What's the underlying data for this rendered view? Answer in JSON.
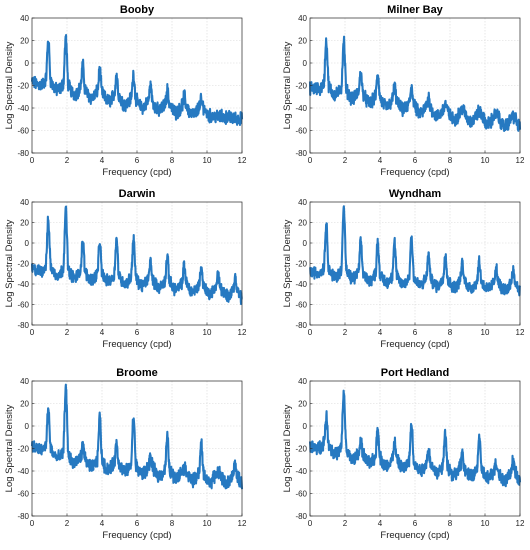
{
  "chart_data": [
    {
      "type": "line",
      "title": "Booby",
      "xlabel": "Frequency (cpd)",
      "ylabel": "Log Spectral Density",
      "xlim": [
        0,
        12
      ],
      "ylim": [
        -80,
        40
      ],
      "xticks": [
        0,
        2,
        4,
        6,
        8,
        10,
        12
      ],
      "yticks": [
        -80,
        -60,
        -40,
        -20,
        0,
        20,
        40
      ],
      "grid": true,
      "color": "#1a72be",
      "background": [
        [
          0,
          -17
        ],
        [
          0.5,
          -20
        ],
        [
          1,
          -23
        ],
        [
          2,
          -26
        ],
        [
          3,
          -30
        ],
        [
          4,
          -33
        ],
        [
          5,
          -36
        ],
        [
          6,
          -39
        ],
        [
          7,
          -42
        ],
        [
          8,
          -44
        ],
        [
          9,
          -46
        ],
        [
          10,
          -47
        ],
        [
          11,
          -48
        ],
        [
          12,
          -50
        ]
      ],
      "peaks": [
        [
          0.93,
          20
        ],
        [
          1.93,
          22
        ],
        [
          2.9,
          -2
        ],
        [
          3.87,
          -6
        ],
        [
          4.83,
          -10
        ],
        [
          5.8,
          -10
        ],
        [
          6.77,
          -20
        ],
        [
          7.73,
          -24
        ],
        [
          8.7,
          -29
        ],
        [
          9.67,
          -33
        ]
      ]
    },
    {
      "type": "line",
      "title": "Milner Bay",
      "xlabel": "Frequency (cpd)",
      "ylabel": "Log Spectral Density",
      "xlim": [
        0,
        12
      ],
      "ylim": [
        -80,
        40
      ],
      "xticks": [
        0,
        2,
        4,
        6,
        8,
        10,
        12
      ],
      "yticks": [
        -80,
        -60,
        -40,
        -20,
        0,
        20,
        40
      ],
      "grid": true,
      "color": "#1a72be",
      "background": [
        [
          0,
          -22
        ],
        [
          0.5,
          -24
        ],
        [
          1,
          -27
        ],
        [
          2,
          -30
        ],
        [
          3,
          -34
        ],
        [
          4,
          -38
        ],
        [
          5,
          -41
        ],
        [
          6,
          -44
        ],
        [
          7,
          -47
        ],
        [
          8,
          -50
        ],
        [
          9,
          -52
        ],
        [
          10,
          -54
        ],
        [
          11,
          -56
        ],
        [
          12,
          -58
        ]
      ],
      "peaks": [
        [
          0.93,
          20
        ],
        [
          1.93,
          20
        ],
        [
          2.9,
          -8
        ],
        [
          3.87,
          -10
        ],
        [
          4.83,
          -20
        ],
        [
          5.8,
          -20
        ],
        [
          6.77,
          -30
        ],
        [
          7.73,
          -36
        ],
        [
          8.7,
          -40
        ],
        [
          9.67,
          -44
        ],
        [
          10.63,
          -47
        ],
        [
          11.6,
          -51
        ]
      ]
    },
    {
      "type": "line",
      "title": "Darwin",
      "xlabel": "Frequency (cpd)",
      "ylabel": "Log Spectral Density",
      "xlim": [
        0,
        12
      ],
      "ylim": [
        -80,
        40
      ],
      "xticks": [
        0,
        2,
        4,
        6,
        8,
        10,
        12
      ],
      "yticks": [
        -80,
        -60,
        -40,
        -20,
        0,
        20,
        40
      ],
      "grid": true,
      "color": "#1a72be",
      "background": [
        [
          0,
          -25
        ],
        [
          0.5,
          -28
        ],
        [
          1,
          -30
        ],
        [
          2,
          -33
        ],
        [
          3,
          -35
        ],
        [
          4,
          -37
        ],
        [
          5,
          -39
        ],
        [
          6,
          -41
        ],
        [
          7,
          -43
        ],
        [
          8,
          -45
        ],
        [
          9,
          -47
        ],
        [
          10,
          -49
        ],
        [
          11,
          -51
        ],
        [
          12,
          -55
        ]
      ],
      "peaks": [
        [
          0.93,
          22
        ],
        [
          1.93,
          32
        ],
        [
          2.9,
          2
        ],
        [
          3.87,
          0
        ],
        [
          4.83,
          4
        ],
        [
          5.8,
          4
        ],
        [
          6.77,
          -18
        ],
        [
          7.73,
          -14
        ],
        [
          8.7,
          -22
        ],
        [
          9.67,
          -24
        ],
        [
          10.63,
          -30
        ],
        [
          11.6,
          -34
        ]
      ]
    },
    {
      "type": "line",
      "title": "Wyndham",
      "xlabel": "Frequency (cpd)",
      "ylabel": "Log Spectral Density",
      "xlim": [
        0,
        12
      ],
      "ylim": [
        -80,
        40
      ],
      "xticks": [
        0,
        2,
        4,
        6,
        8,
        10,
        12
      ],
      "yticks": [
        -80,
        -60,
        -40,
        -20,
        0,
        20,
        40
      ],
      "grid": true,
      "color": "#1a72be",
      "background": [
        [
          0,
          -28
        ],
        [
          0.5,
          -30
        ],
        [
          1,
          -32
        ],
        [
          2,
          -34
        ],
        [
          3,
          -36
        ],
        [
          4,
          -38
        ],
        [
          5,
          -40
        ],
        [
          6,
          -41
        ],
        [
          7,
          -42
        ],
        [
          8,
          -43
        ],
        [
          9,
          -44
        ],
        [
          10,
          -45
        ],
        [
          11,
          -46
        ],
        [
          12,
          -47
        ]
      ],
      "peaks": [
        [
          0.93,
          18
        ],
        [
          1.93,
          34
        ],
        [
          2.9,
          0
        ],
        [
          3.87,
          0
        ],
        [
          4.83,
          0
        ],
        [
          5.8,
          6
        ],
        [
          6.77,
          -12
        ],
        [
          7.73,
          -10
        ],
        [
          8.7,
          -20
        ],
        [
          9.67,
          -18
        ],
        [
          10.63,
          -24
        ],
        [
          11.6,
          -26
        ]
      ]
    },
    {
      "type": "line",
      "title": "Broome",
      "xlabel": "Frequency (cpd)",
      "ylabel": "Log Spectral Density",
      "xlim": [
        0,
        12
      ],
      "ylim": [
        -80,
        40
      ],
      "xticks": [
        0,
        2,
        4,
        6,
        8,
        10,
        12
      ],
      "yticks": [
        -80,
        -60,
        -40,
        -20,
        0,
        20,
        40
      ],
      "grid": true,
      "color": "#1a72be",
      "background": [
        [
          0,
          -18
        ],
        [
          0.5,
          -22
        ],
        [
          1,
          -26
        ],
        [
          2,
          -32
        ],
        [
          3,
          -36
        ],
        [
          4,
          -38
        ],
        [
          5,
          -40
        ],
        [
          6,
          -42
        ],
        [
          7,
          -44
        ],
        [
          8,
          -46
        ],
        [
          9,
          -48
        ],
        [
          10,
          -50
        ],
        [
          11,
          -51
        ],
        [
          12,
          -52
        ]
      ],
      "peaks": [
        [
          0.93,
          14
        ],
        [
          1.93,
          34
        ],
        [
          2.9,
          -18
        ],
        [
          3.87,
          8
        ],
        [
          4.83,
          -16
        ],
        [
          5.8,
          8
        ],
        [
          6.77,
          -28
        ],
        [
          7.73,
          -10
        ],
        [
          8.7,
          -38
        ],
        [
          9.67,
          -16
        ],
        [
          10.63,
          -44
        ],
        [
          11.6,
          -34
        ]
      ]
    },
    {
      "type": "line",
      "title": "Port Hedland",
      "xlabel": "Frequency (cpd)",
      "ylabel": "Log Spectral Density",
      "xlim": [
        0,
        12
      ],
      "ylim": [
        -80,
        40
      ],
      "xticks": [
        0,
        2,
        4,
        6,
        8,
        10,
        12
      ],
      "yticks": [
        -80,
        -60,
        -40,
        -20,
        0,
        20,
        40
      ],
      "grid": true,
      "color": "#1a72be",
      "background": [
        [
          0,
          -18
        ],
        [
          0.5,
          -20
        ],
        [
          1,
          -22
        ],
        [
          2,
          -28
        ],
        [
          3,
          -32
        ],
        [
          4,
          -35
        ],
        [
          5,
          -37
        ],
        [
          6,
          -39
        ],
        [
          7,
          -41
        ],
        [
          8,
          -43
        ],
        [
          9,
          -45
        ],
        [
          10,
          -46
        ],
        [
          11,
          -48
        ],
        [
          12,
          -50
        ]
      ],
      "peaks": [
        [
          0.93,
          8
        ],
        [
          1.93,
          30
        ],
        [
          2.9,
          -14
        ],
        [
          3.87,
          -2
        ],
        [
          4.83,
          -14
        ],
        [
          5.8,
          2
        ],
        [
          6.77,
          -20
        ],
        [
          7.73,
          -6
        ],
        [
          8.7,
          -24
        ],
        [
          9.67,
          -10
        ],
        [
          10.63,
          -32
        ],
        [
          11.6,
          -30
        ]
      ]
    }
  ]
}
